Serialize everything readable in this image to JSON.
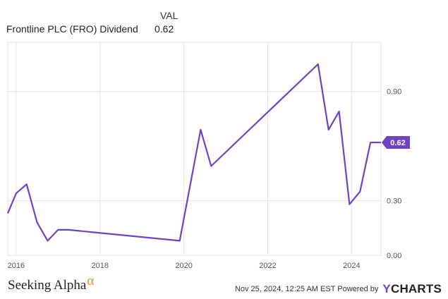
{
  "legend": {
    "header": "VAL",
    "series_name": "Frontline PLC (FRO) Dividend",
    "series_value": "0.62"
  },
  "footer": {
    "left_text": "Seeking Alpha",
    "left_mark": "α",
    "right_text": "Nov 25, 2024, 12:25 AM EST Powered by",
    "brand_y": "Y",
    "brand_rest": "CHARTS"
  },
  "colors": {
    "line": "#6f42c1",
    "grid": "#e6e6e6",
    "axis_text": "#555555"
  },
  "chart_data": {
    "type": "line",
    "x_ticks": [
      "2016",
      "2018",
      "2020",
      "2022",
      "2024"
    ],
    "y_ticks": [
      "0.00",
      "0.30",
      "0.90"
    ],
    "y_tick_values": [
      0.0,
      0.3,
      0.9
    ],
    "ylim": [
      0.0,
      1.17
    ],
    "xlim": [
      2015.8,
      2024.7
    ],
    "last_value_label": "0.62",
    "series": [
      {
        "name": "Frontline PLC (FRO) Dividend",
        "x": [
          2015.8,
          2016.0,
          2016.25,
          2016.5,
          2016.75,
          2017.0,
          2017.25,
          2019.9,
          2020.4,
          2020.65,
          2023.2,
          2023.45,
          2023.7,
          2023.95,
          2024.2,
          2024.45,
          2024.7
        ],
        "values": [
          0.23,
          0.34,
          0.39,
          0.18,
          0.08,
          0.14,
          0.14,
          0.08,
          0.69,
          0.49,
          1.05,
          0.69,
          0.79,
          0.28,
          0.35,
          0.62,
          0.62
        ]
      }
    ]
  }
}
